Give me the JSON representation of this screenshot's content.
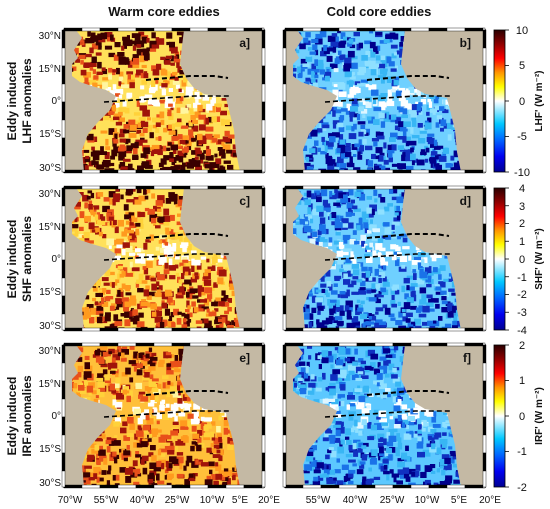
{
  "columns": {
    "left": "Warm core eddies",
    "right": "Cold core eddies"
  },
  "rows": [
    {
      "line1": "Eddy induced",
      "line2": "LHF anomalies"
    },
    {
      "line1": "Eddy induced",
      "line2": "SHF anomalies"
    },
    {
      "line1": "Eddy induced",
      "line2": "IRF anomalies"
    }
  ],
  "panels": {
    "left": [
      "a]",
      "c]",
      "e]"
    ],
    "right": [
      "b]",
      "d]",
      "f]"
    ]
  },
  "lat_ticks": [
    "30°N",
    "15°N",
    "0°",
    "15°S",
    "30°S"
  ],
  "lon_ticks_left": [
    "70°W",
    "55°W",
    "40°W",
    "25°W",
    "10°W",
    "5°E",
    "20°E"
  ],
  "lon_ticks_right": [
    "55°W",
    "40°W",
    "25°W",
    "10°W",
    "5°E",
    "20°E"
  ],
  "colorbars": [
    {
      "ticks": [
        "10",
        "5",
        "0",
        "-5",
        "-10"
      ],
      "label": "LHF' (W m⁻²)"
    },
    {
      "ticks": [
        "4",
        "3",
        "2",
        "1",
        "0",
        "-1",
        "-2",
        "-3",
        "-4"
      ],
      "label": "SHF' (W m⁻²)"
    },
    {
      "ticks": [
        "2",
        "1",
        "0",
        "-1",
        "-2"
      ],
      "label": "IRF' (W m⁻²)"
    }
  ],
  "colors": {
    "land": "#c4b9a4",
    "warm_scale": [
      "#fff6a0",
      "#ffd23a",
      "#ff9a1e",
      "#e8501a",
      "#a0140a",
      "#3a0000"
    ],
    "cold_scale": [
      "#dff6ff",
      "#8fe0ff",
      "#38b6f4",
      "#1a72e8",
      "#1030c0",
      "#00008c"
    ],
    "colorbar_stops": [
      "#000090",
      "#0000f0",
      "#0060ff",
      "#00c8ff",
      "#ffffff",
      "#ffff00",
      "#ff9600",
      "#ff0000",
      "#900000",
      "#2a0000"
    ]
  }
}
